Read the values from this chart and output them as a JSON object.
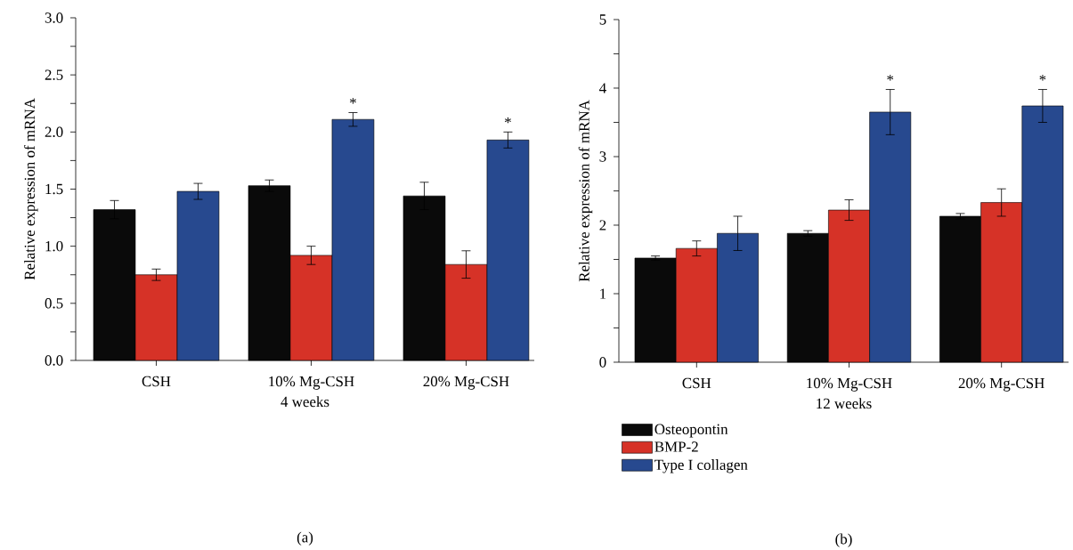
{
  "chart_data": [
    {
      "type": "bar",
      "title": "(a)",
      "xlabel": "4 weeks",
      "ylabel": "Relative expression of mRNA",
      "categories": [
        "CSH",
        "10% Mg-CSH",
        "20% Mg-CSH"
      ],
      "series": [
        {
          "color": "#0a0a0a",
          "values": [
            1.32,
            1.53,
            1.44
          ],
          "errors": [
            0.08,
            0.05,
            0.12
          ]
        },
        {
          "color": "#d63227",
          "values": [
            0.75,
            0.92,
            0.84
          ],
          "errors": [
            0.05,
            0.08,
            0.12
          ]
        },
        {
          "color": "#27498f",
          "values": [
            1.48,
            2.11,
            1.93
          ],
          "errors": [
            0.07,
            0.06,
            0.07
          ]
        }
      ],
      "ylim": [
        0,
        3
      ],
      "yticks": [
        {
          "value": 0,
          "label": "0.0"
        },
        {
          "value": 0.25,
          "label": null
        },
        {
          "value": 0.5,
          "label": "0.5"
        },
        {
          "value": 0.75,
          "label": null
        },
        {
          "value": 1,
          "label": "1.0"
        },
        {
          "value": 1.25,
          "label": null
        },
        {
          "value": 1.5,
          "label": "1.5"
        },
        {
          "value": 1.75,
          "label": null
        },
        {
          "value": 2,
          "label": "2.0"
        },
        {
          "value": 2.25,
          "label": null
        },
        {
          "value": 2.5,
          "label": "2.5"
        },
        {
          "value": 2.75,
          "label": null
        },
        {
          "value": 3,
          "label": "3.0"
        }
      ],
      "annotations": [
        "*",
        "*"
      ],
      "grid": false,
      "legend": false
    },
    {
      "type": "bar",
      "title": "(b)",
      "xlabel": "12 weeks",
      "ylabel": "Relative expression of mRNA",
      "categories": [
        "CSH",
        "10% Mg-CSH",
        "20% Mg-CSH"
      ],
      "series": [
        {
          "name": "Osteopontin",
          "color": "#0a0a0a",
          "values": [
            1.52,
            1.88,
            2.13
          ],
          "errors": [
            0.03,
            0.04,
            0.04
          ]
        },
        {
          "name": "BMP-2",
          "color": "#d63227",
          "values": [
            1.66,
            2.22,
            2.33
          ],
          "errors": [
            0.11,
            0.15,
            0.2
          ]
        },
        {
          "name": "Type I collagen",
          "color": "#27498f",
          "values": [
            1.88,
            3.65,
            3.74
          ],
          "errors": [
            0.25,
            0.33,
            0.24
          ]
        }
      ],
      "ylim": [
        0,
        5
      ],
      "yticks": [
        0,
        {
          "value": 0.5,
          "label": null
        },
        1,
        {
          "value": 1.5,
          "label": null
        },
        2,
        {
          "value": 2.5,
          "label": null
        },
        3,
        {
          "value": 3.5,
          "label": null
        },
        4,
        {
          "value": 4.5,
          "label": null
        },
        5
      ],
      "annotations": [
        "*",
        "*"
      ],
      "grid": false,
      "legend": "bottom"
    }
  ]
}
